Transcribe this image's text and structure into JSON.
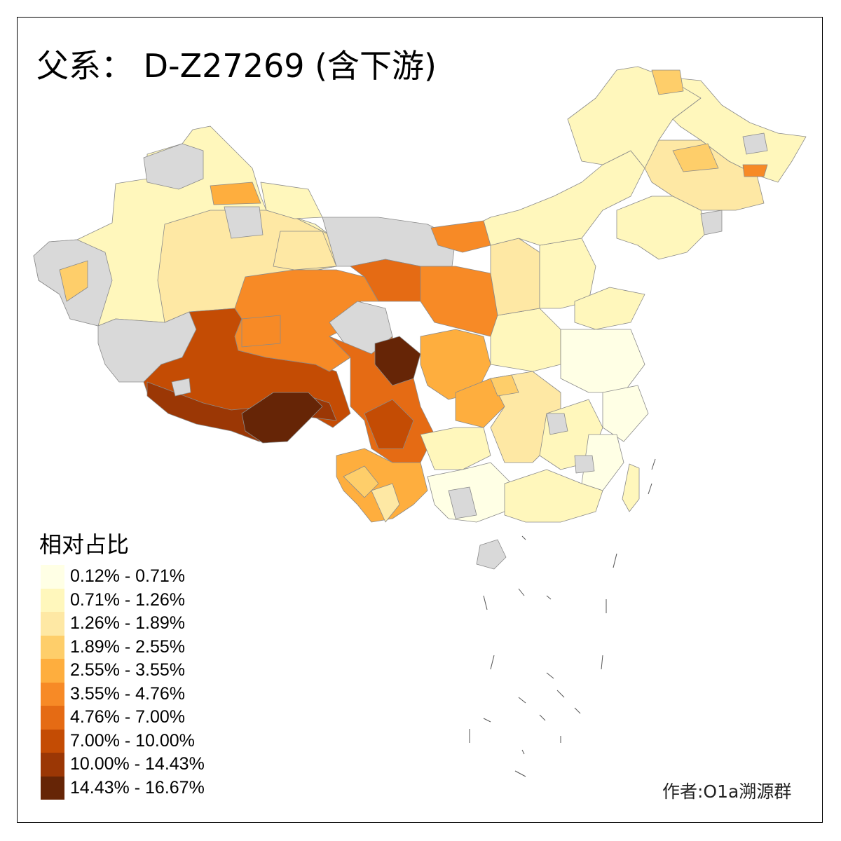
{
  "title": "父系： D-Z27269 (含下游)",
  "legend": {
    "title": "相对占比",
    "items": [
      {
        "label": "0.12% - 0.71%",
        "color": "#ffffe5"
      },
      {
        "label": "0.71% - 1.26%",
        "color": "#fff7bc"
      },
      {
        "label": "1.26% - 1.89%",
        "color": "#fee8a4"
      },
      {
        "label": "1.89% - 2.55%",
        "color": "#fece6a"
      },
      {
        "label": "2.55% - 3.55%",
        "color": "#feae3e"
      },
      {
        "label": "3.55% - 4.76%",
        "color": "#f78a26"
      },
      {
        "label": "4.76% - 7.00%",
        "color": "#e56b14"
      },
      {
        "label": "7.00% - 10.00%",
        "color": "#c44c04"
      },
      {
        "label": "10.00% - 14.43%",
        "color": "#9b3705"
      },
      {
        "label": "14.43% - 16.67%",
        "color": "#662506"
      }
    ]
  },
  "author": "作者:O1a溯源群",
  "nodata_color": "#d9d9d9"
}
